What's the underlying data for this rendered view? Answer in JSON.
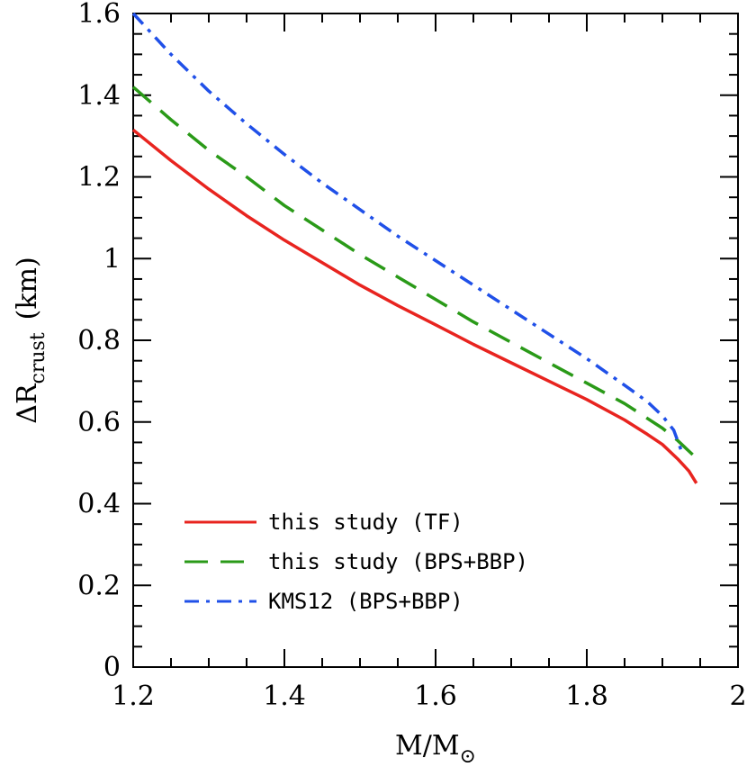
{
  "chart_data": {
    "type": "line",
    "title": "",
    "xlabel": "M/M",
    "xlabel_sub": "⊙",
    "ylabel": "ΔR",
    "ylabel_sub": "crust",
    "ylabel_unit": "(km)",
    "xlim": [
      1.2,
      2.0
    ],
    "ylim": [
      0,
      1.6
    ],
    "xticks": [
      1.2,
      1.4,
      1.6,
      1.8,
      2.0
    ],
    "xtick_labels": [
      "1.2",
      "1.4",
      "1.6",
      "1.8",
      "2"
    ],
    "yticks": [
      0,
      0.2,
      0.4,
      0.6,
      0.8,
      1.0,
      1.2,
      1.4,
      1.6
    ],
    "ytick_labels": [
      "0",
      "0.2",
      "0.4",
      "0.6",
      "0.8",
      "1",
      "1.2",
      "1.4",
      "1.6"
    ],
    "grid": false,
    "legend_position": "bottom-left",
    "series": [
      {
        "name": "this study (TF)",
        "color": "#e8241f",
        "style": "solid",
        "points": [
          [
            1.2,
            1.315
          ],
          [
            1.25,
            1.24
          ],
          [
            1.3,
            1.17
          ],
          [
            1.35,
            1.105
          ],
          [
            1.4,
            1.045
          ],
          [
            1.45,
            0.99
          ],
          [
            1.5,
            0.935
          ],
          [
            1.55,
            0.885
          ],
          [
            1.6,
            0.838
          ],
          [
            1.65,
            0.79
          ],
          [
            1.7,
            0.745
          ],
          [
            1.75,
            0.7
          ],
          [
            1.8,
            0.655
          ],
          [
            1.85,
            0.605
          ],
          [
            1.88,
            0.57
          ],
          [
            1.9,
            0.545
          ],
          [
            1.92,
            0.51
          ],
          [
            1.935,
            0.48
          ],
          [
            1.945,
            0.45
          ]
        ]
      },
      {
        "name": "this study (BPS+BBP)",
        "color": "#2a9a18",
        "style": "dashed",
        "points": [
          [
            1.2,
            1.42
          ],
          [
            1.25,
            1.34
          ],
          [
            1.3,
            1.265
          ],
          [
            1.35,
            1.2
          ],
          [
            1.4,
            1.13
          ],
          [
            1.45,
            1.07
          ],
          [
            1.5,
            1.01
          ],
          [
            1.55,
            0.955
          ],
          [
            1.6,
            0.9
          ],
          [
            1.65,
            0.845
          ],
          [
            1.7,
            0.795
          ],
          [
            1.75,
            0.745
          ],
          [
            1.8,
            0.695
          ],
          [
            1.85,
            0.645
          ],
          [
            1.9,
            0.585
          ],
          [
            1.92,
            0.555
          ],
          [
            1.94,
            0.52
          ]
        ]
      },
      {
        "name": "KMS12 (BPS+BBP)",
        "color": "#2050e8",
        "style": "dashdot",
        "points": [
          [
            1.2,
            1.6
          ],
          [
            1.25,
            1.5
          ],
          [
            1.3,
            1.41
          ],
          [
            1.35,
            1.33
          ],
          [
            1.4,
            1.255
          ],
          [
            1.45,
            1.185
          ],
          [
            1.5,
            1.12
          ],
          [
            1.55,
            1.055
          ],
          [
            1.6,
            0.995
          ],
          [
            1.65,
            0.935
          ],
          [
            1.7,
            0.875
          ],
          [
            1.75,
            0.815
          ],
          [
            1.8,
            0.755
          ],
          [
            1.85,
            0.69
          ],
          [
            1.88,
            0.65
          ],
          [
            1.9,
            0.615
          ],
          [
            1.915,
            0.58
          ],
          [
            1.925,
            0.53
          ]
        ]
      }
    ]
  }
}
